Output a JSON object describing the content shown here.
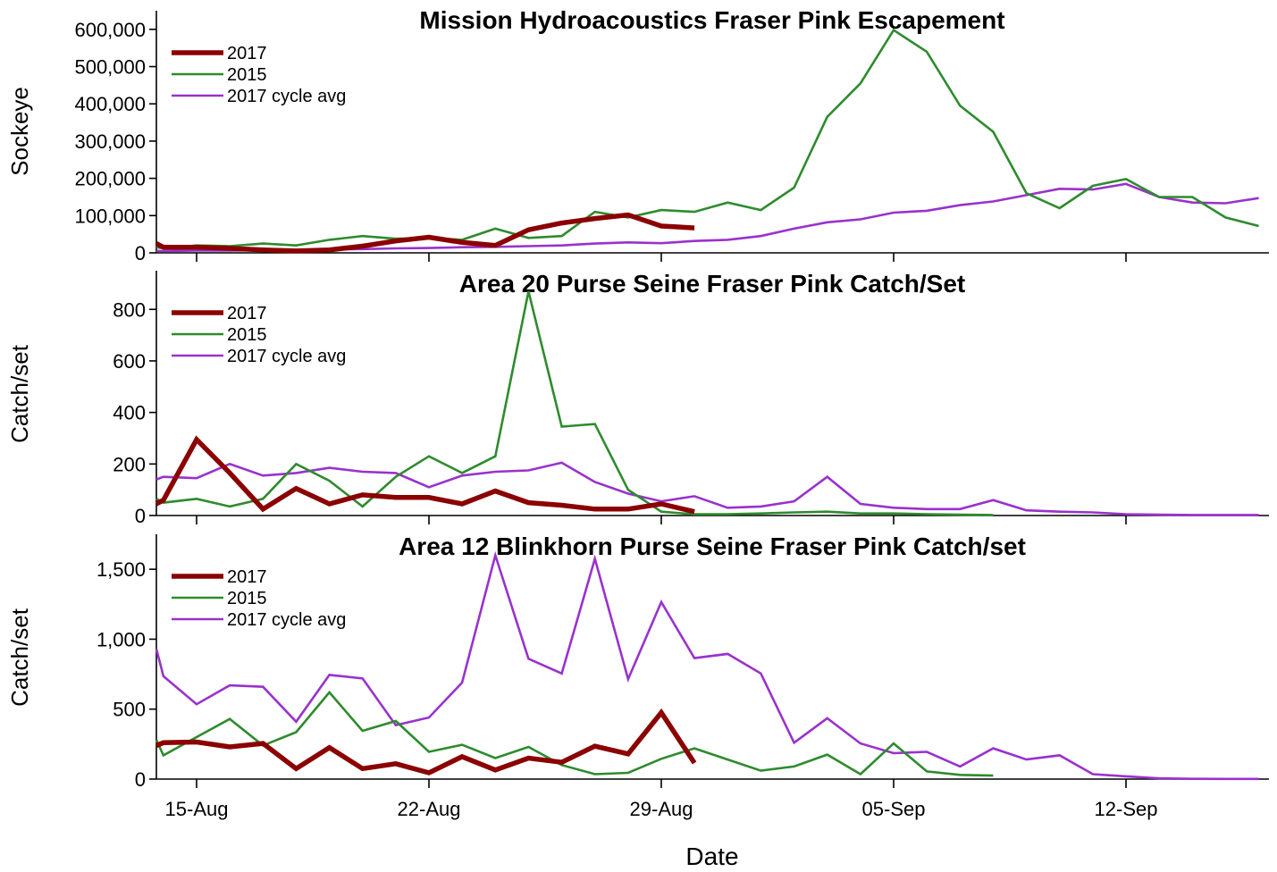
{
  "chart_data": [
    {
      "type": "line",
      "title": "Mission Hydroacoustics Fraser Pink Escapement",
      "xlabel": "",
      "ylabel": "Sockeye",
      "ylim": [
        0,
        650000
      ],
      "yticks": [
        0,
        100000,
        200000,
        300000,
        400000,
        500000,
        600000
      ],
      "ytick_labels": [
        "0",
        "100,000",
        "200,000",
        "300,000",
        "400,000",
        "500,000",
        "600,000"
      ],
      "legend": "top-left",
      "series": [
        {
          "name": "2017",
          "color": "#8b0000",
          "x": [
            "13-Aug",
            "14-Aug",
            "15-Aug",
            "16-Aug",
            "17-Aug",
            "18-Aug",
            "19-Aug",
            "20-Aug",
            "21-Aug",
            "22-Aug",
            "23-Aug",
            "24-Aug",
            "25-Aug",
            "26-Aug",
            "27-Aug",
            "28-Aug",
            "29-Aug",
            "30-Aug"
          ],
          "values": [
            25000,
            15000,
            15000,
            12000,
            8000,
            5000,
            8000,
            18000,
            32000,
            42000,
            28000,
            20000,
            62000,
            80000,
            92000,
            102000,
            72000,
            67000
          ]
        },
        {
          "name": "2015",
          "color": "#2e8b2e",
          "x": [
            "13-Aug",
            "14-Aug",
            "15-Aug",
            "16-Aug",
            "17-Aug",
            "18-Aug",
            "19-Aug",
            "20-Aug",
            "21-Aug",
            "22-Aug",
            "23-Aug",
            "24-Aug",
            "25-Aug",
            "26-Aug",
            "27-Aug",
            "28-Aug",
            "29-Aug",
            "30-Aug",
            "31-Aug",
            "01-Sep",
            "02-Sep",
            "03-Sep",
            "04-Sep",
            "05-Sep",
            "06-Sep",
            "07-Sep",
            "08-Sep",
            "09-Sep",
            "10-Sep",
            "11-Sep",
            "12-Sep",
            "13-Sep",
            "14-Sep",
            "15-Sep",
            "16-Sep"
          ],
          "values": [
            15000,
            12000,
            20000,
            18000,
            25000,
            20000,
            35000,
            45000,
            38000,
            40000,
            35000,
            65000,
            40000,
            45000,
            110000,
            95000,
            115000,
            110000,
            135000,
            115000,
            175000,
            365000,
            455000,
            598000,
            540000,
            395000,
            325000,
            160000,
            120000,
            180000,
            198000,
            150000,
            150000,
            95000,
            72000
          ]
        },
        {
          "name": "2017 cycle avg",
          "color": "#9932cc",
          "x": [
            "13-Aug",
            "14-Aug",
            "15-Aug",
            "16-Aug",
            "17-Aug",
            "18-Aug",
            "19-Aug",
            "20-Aug",
            "21-Aug",
            "22-Aug",
            "23-Aug",
            "24-Aug",
            "25-Aug",
            "26-Aug",
            "27-Aug",
            "28-Aug",
            "29-Aug",
            "30-Aug",
            "31-Aug",
            "01-Sep",
            "02-Sep",
            "03-Sep",
            "04-Sep",
            "05-Sep",
            "06-Sep",
            "07-Sep",
            "08-Sep",
            "09-Sep",
            "10-Sep",
            "11-Sep",
            "12-Sep",
            "13-Sep",
            "14-Sep",
            "15-Sep",
            "16-Sep"
          ],
          "values": [
            5000,
            5000,
            6000,
            6000,
            7000,
            8000,
            9000,
            10000,
            12000,
            13000,
            15000,
            16000,
            18000,
            20000,
            25000,
            28000,
            26000,
            32000,
            35000,
            45000,
            65000,
            82000,
            90000,
            108000,
            113000,
            128000,
            138000,
            155000,
            172000,
            170000,
            185000,
            150000,
            135000,
            133000,
            147000
          ]
        }
      ]
    },
    {
      "type": "line",
      "title": "Area 20 Purse Seine Fraser Pink Catch/Set",
      "xlabel": "",
      "ylabel": "Catch/set",
      "ylim": [
        0,
        950
      ],
      "yticks": [
        0,
        200,
        400,
        600,
        800
      ],
      "ytick_labels": [
        "0",
        "200",
        "400",
        "600",
        "800"
      ],
      "legend": "top-left",
      "series": [
        {
          "name": "2017",
          "color": "#8b0000",
          "x": [
            "13-Aug",
            "14-Aug",
            "15-Aug",
            "16-Aug",
            "17-Aug",
            "18-Aug",
            "19-Aug",
            "20-Aug",
            "21-Aug",
            "22-Aug",
            "23-Aug",
            "24-Aug",
            "25-Aug",
            "26-Aug",
            "27-Aug",
            "28-Aug",
            "29-Aug",
            "30-Aug"
          ],
          "values": [
            45,
            60,
            295,
            165,
            25,
            105,
            45,
            80,
            70,
            70,
            45,
            95,
            50,
            40,
            25,
            25,
            45,
            15
          ]
        },
        {
          "name": "2015",
          "color": "#2e8b2e",
          "x": [
            "13-Aug",
            "14-Aug",
            "15-Aug",
            "16-Aug",
            "17-Aug",
            "18-Aug",
            "19-Aug",
            "20-Aug",
            "21-Aug",
            "22-Aug",
            "23-Aug",
            "24-Aug",
            "25-Aug",
            "26-Aug",
            "27-Aug",
            "28-Aug",
            "29-Aug",
            "30-Aug",
            "31-Aug",
            "01-Sep",
            "02-Sep",
            "03-Sep",
            "04-Sep",
            "05-Sep",
            "06-Sep",
            "07-Sep",
            "08-Sep"
          ],
          "values": [
            65,
            50,
            65,
            35,
            65,
            200,
            135,
            35,
            150,
            230,
            165,
            230,
            870,
            345,
            355,
            100,
            15,
            5,
            5,
            8,
            12,
            15,
            8,
            8,
            5,
            3,
            2
          ]
        },
        {
          "name": "2017 cycle avg",
          "color": "#9932cc",
          "x": [
            "13-Aug",
            "14-Aug",
            "15-Aug",
            "16-Aug",
            "17-Aug",
            "18-Aug",
            "19-Aug",
            "20-Aug",
            "21-Aug",
            "22-Aug",
            "23-Aug",
            "24-Aug",
            "25-Aug",
            "26-Aug",
            "27-Aug",
            "28-Aug",
            "29-Aug",
            "30-Aug",
            "31-Aug",
            "01-Sep",
            "02-Sep",
            "03-Sep",
            "04-Sep",
            "05-Sep",
            "06-Sep",
            "07-Sep",
            "08-Sep",
            "09-Sep",
            "10-Sep",
            "11-Sep",
            "12-Sep",
            "13-Sep",
            "14-Sep",
            "15-Sep",
            "16-Sep"
          ],
          "values": [
            140,
            150,
            145,
            200,
            155,
            165,
            185,
            170,
            165,
            110,
            155,
            170,
            175,
            205,
            130,
            85,
            55,
            75,
            30,
            35,
            55,
            150,
            45,
            30,
            25,
            25,
            60,
            20,
            15,
            12,
            5,
            3,
            2,
            2,
            2
          ]
        }
      ]
    },
    {
      "type": "line",
      "title": "Area 12 Blinkhorn Purse Seine Fraser Pink Catch/set",
      "xlabel": "Date",
      "ylabel": "Catch/set",
      "ylim": [
        0,
        1750
      ],
      "yticks": [
        0,
        500,
        1000,
        1500
      ],
      "ytick_labels": [
        "0",
        "500",
        "1,000",
        "1,500"
      ],
      "xtick_labels": [
        "15-Aug",
        "22-Aug",
        "29-Aug",
        "05-Sep",
        "12-Sep"
      ],
      "legend": "top-left",
      "series": [
        {
          "name": "2017",
          "color": "#8b0000",
          "x": [
            "13-Aug",
            "14-Aug",
            "15-Aug",
            "16-Aug",
            "17-Aug",
            "18-Aug",
            "19-Aug",
            "20-Aug",
            "21-Aug",
            "22-Aug",
            "23-Aug",
            "24-Aug",
            "25-Aug",
            "26-Aug",
            "27-Aug",
            "28-Aug",
            "29-Aug",
            "30-Aug"
          ],
          "values": [
            240,
            260,
            265,
            230,
            255,
            75,
            225,
            75,
            110,
            45,
            160,
            65,
            150,
            120,
            235,
            180,
            475,
            115
          ]
        },
        {
          "name": "2015",
          "color": "#2e8b2e",
          "x": [
            "13-Aug",
            "14-Aug",
            "15-Aug",
            "16-Aug",
            "17-Aug",
            "18-Aug",
            "19-Aug",
            "20-Aug",
            "21-Aug",
            "22-Aug",
            "23-Aug",
            "24-Aug",
            "25-Aug",
            "26-Aug",
            "27-Aug",
            "28-Aug",
            "29-Aug",
            "30-Aug",
            "31-Aug",
            "01-Sep",
            "02-Sep",
            "03-Sep",
            "04-Sep",
            "05-Sep",
            "06-Sep",
            "07-Sep",
            "08-Sep"
          ],
          "values": [
            280,
            170,
            300,
            430,
            240,
            335,
            620,
            345,
            415,
            195,
            245,
            150,
            230,
            100,
            35,
            45,
            145,
            220,
            140,
            60,
            90,
            175,
            35,
            255,
            55,
            30,
            25
          ]
        },
        {
          "name": "2017 cycle avg",
          "color": "#9932cc",
          "x": [
            "13-Aug",
            "14-Aug",
            "15-Aug",
            "16-Aug",
            "17-Aug",
            "18-Aug",
            "19-Aug",
            "20-Aug",
            "21-Aug",
            "22-Aug",
            "23-Aug",
            "24-Aug",
            "25-Aug",
            "26-Aug",
            "27-Aug",
            "28-Aug",
            "29-Aug",
            "30-Aug",
            "31-Aug",
            "01-Sep",
            "02-Sep",
            "03-Sep",
            "04-Sep",
            "05-Sep",
            "06-Sep",
            "07-Sep",
            "08-Sep",
            "09-Sep",
            "10-Sep",
            "11-Sep",
            "12-Sep",
            "13-Sep",
            "14-Sep",
            "15-Sep",
            "16-Sep"
          ],
          "values": [
            930,
            735,
            535,
            670,
            660,
            410,
            745,
            720,
            385,
            440,
            690,
            1600,
            860,
            755,
            1575,
            715,
            1265,
            865,
            895,
            755,
            260,
            435,
            255,
            185,
            195,
            90,
            220,
            140,
            170,
            35,
            20,
            5,
            2,
            1,
            1
          ]
        }
      ]
    }
  ]
}
